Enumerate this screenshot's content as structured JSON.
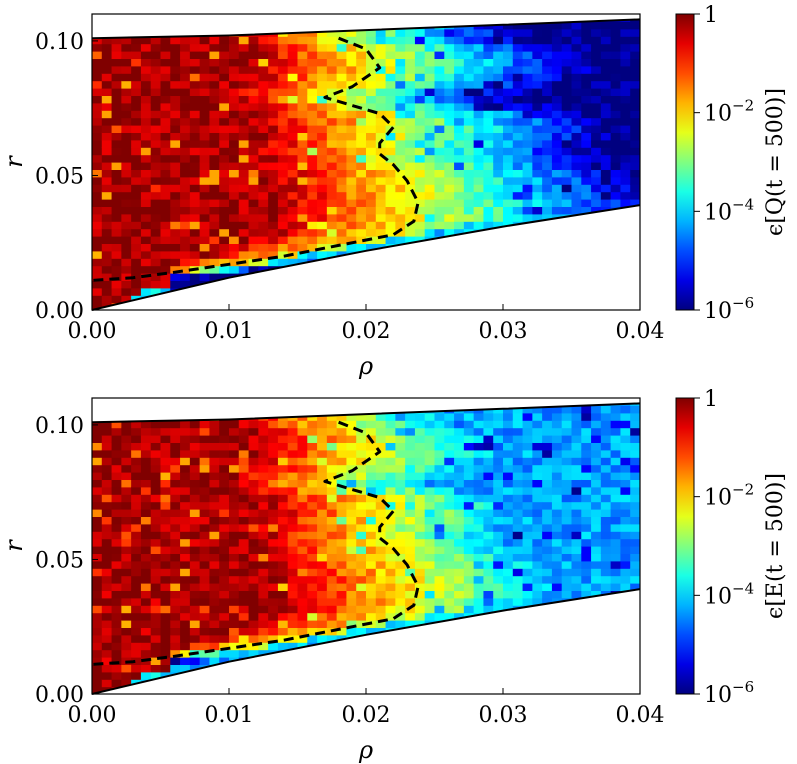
{
  "chart_data": [
    {
      "type": "heatmap",
      "xlabel": "ρ",
      "ylabel": "r",
      "xlim": [
        0.0,
        0.04
      ],
      "ylim": [
        0.0,
        0.11
      ],
      "x_ticks": [
        "0.00",
        "0.01",
        "0.02",
        "0.03",
        "0.04"
      ],
      "y_ticks": [
        "0.00",
        "0.05",
        "0.10"
      ],
      "colorbar": {
        "label": "ϵ[Q(t = 500)]",
        "scale": "log",
        "range": [
          1e-06,
          1
        ],
        "ticks": [
          {
            "base": "1",
            "exp": "",
            "value": 1
          },
          {
            "base": "10",
            "exp": "−2",
            "value": 0.01
          },
          {
            "base": "10",
            "exp": "−4",
            "value": 0.0001
          },
          {
            "base": "10",
            "exp": "−6",
            "value": 1e-06
          }
        ],
        "colormap": "jet"
      },
      "upper_boundary": [
        [
          0.0,
          0.101
        ],
        [
          0.01,
          0.102
        ],
        [
          0.02,
          0.104
        ],
        [
          0.03,
          0.106
        ],
        [
          0.04,
          0.108
        ]
      ],
      "lower_boundary": [
        [
          0.0,
          0.0
        ],
        [
          0.01,
          0.012
        ],
        [
          0.02,
          0.022
        ],
        [
          0.03,
          0.031
        ],
        [
          0.04,
          0.039
        ]
      ],
      "dashed_contour": [
        [
          0.018,
          0.101
        ],
        [
          0.02,
          0.097
        ],
        [
          0.021,
          0.09
        ],
        [
          0.019,
          0.083
        ],
        [
          0.017,
          0.079
        ],
        [
          0.019,
          0.076
        ],
        [
          0.021,
          0.073
        ],
        [
          0.022,
          0.068
        ],
        [
          0.021,
          0.062
        ],
        [
          0.021,
          0.058
        ],
        [
          0.022,
          0.054
        ],
        [
          0.023,
          0.048
        ],
        [
          0.0238,
          0.04
        ],
        [
          0.0235,
          0.033
        ],
        [
          0.022,
          0.028
        ],
        [
          0.018,
          0.024
        ],
        [
          0.014,
          0.02
        ],
        [
          0.01,
          0.017
        ],
        [
          0.006,
          0.014
        ],
        [
          0.003,
          0.012
        ],
        [
          0.0,
          0.011
        ]
      ],
      "field": {
        "ridge_rho": 0.009,
        "far_log_value": -6
      }
    },
    {
      "type": "heatmap",
      "xlabel": "ρ",
      "ylabel": "r",
      "xlim": [
        0.0,
        0.04
      ],
      "ylim": [
        0.0,
        0.11
      ],
      "x_ticks": [
        "0.00",
        "0.01",
        "0.02",
        "0.03",
        "0.04"
      ],
      "y_ticks": [
        "0.00",
        "0.05",
        "0.10"
      ],
      "colorbar": {
        "label": "ϵ[E(t = 500)]",
        "scale": "log",
        "range": [
          1e-06,
          1
        ],
        "ticks": [
          {
            "base": "1",
            "exp": "",
            "value": 1
          },
          {
            "base": "10",
            "exp": "−2",
            "value": 0.01
          },
          {
            "base": "10",
            "exp": "−4",
            "value": 0.0001
          },
          {
            "base": "10",
            "exp": "−6",
            "value": 1e-06
          }
        ],
        "colormap": "jet"
      },
      "upper_boundary": [
        [
          0.0,
          0.101
        ],
        [
          0.01,
          0.102
        ],
        [
          0.02,
          0.104
        ],
        [
          0.03,
          0.106
        ],
        [
          0.04,
          0.108
        ]
      ],
      "lower_boundary": [
        [
          0.0,
          0.0
        ],
        [
          0.01,
          0.012
        ],
        [
          0.02,
          0.022
        ],
        [
          0.03,
          0.031
        ],
        [
          0.04,
          0.039
        ]
      ],
      "dashed_contour": [
        [
          0.018,
          0.101
        ],
        [
          0.02,
          0.097
        ],
        [
          0.021,
          0.09
        ],
        [
          0.019,
          0.083
        ],
        [
          0.017,
          0.079
        ],
        [
          0.019,
          0.076
        ],
        [
          0.021,
          0.073
        ],
        [
          0.022,
          0.068
        ],
        [
          0.021,
          0.062
        ],
        [
          0.021,
          0.058
        ],
        [
          0.022,
          0.054
        ],
        [
          0.023,
          0.048
        ],
        [
          0.0238,
          0.04
        ],
        [
          0.0235,
          0.033
        ],
        [
          0.022,
          0.028
        ],
        [
          0.018,
          0.024
        ],
        [
          0.014,
          0.02
        ],
        [
          0.01,
          0.017
        ],
        [
          0.006,
          0.014
        ],
        [
          0.003,
          0.012
        ],
        [
          0.0,
          0.011
        ]
      ],
      "field": {
        "ridge_rho": 0.009,
        "far_log_value": -4.3
      }
    }
  ]
}
